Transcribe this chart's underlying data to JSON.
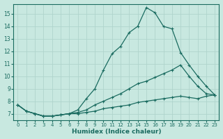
{
  "xlabel": "Humidex (Indice chaleur)",
  "bg_color": "#c8e8e0",
  "grid_color": "#b0d4cc",
  "line_color": "#1a6b60",
  "xlim": [
    -0.5,
    23.5
  ],
  "ylim": [
    6.5,
    15.8
  ],
  "xticks": [
    0,
    1,
    2,
    3,
    4,
    5,
    6,
    7,
    8,
    9,
    10,
    11,
    12,
    13,
    14,
    15,
    16,
    17,
    18,
    19,
    20,
    21,
    22,
    23
  ],
  "yticks": [
    7,
    8,
    9,
    10,
    11,
    12,
    13,
    14,
    15
  ],
  "line1_x": [
    0,
    1,
    2,
    3,
    4,
    5,
    6,
    7,
    8,
    9,
    10,
    11,
    12,
    13,
    14,
    15,
    16,
    17,
    18,
    19,
    20,
    21,
    22,
    23
  ],
  "line1_y": [
    7.7,
    7.2,
    7.0,
    6.8,
    6.8,
    6.9,
    7.0,
    7.0,
    7.1,
    7.2,
    7.4,
    7.5,
    7.6,
    7.7,
    7.9,
    8.0,
    8.1,
    8.2,
    8.3,
    8.4,
    8.3,
    8.2,
    8.4,
    8.5
  ],
  "line2_x": [
    0,
    1,
    2,
    3,
    4,
    5,
    6,
    7,
    8,
    9,
    10,
    11,
    12,
    13,
    14,
    15,
    16,
    17,
    18,
    19,
    20,
    21,
    22,
    23
  ],
  "line2_y": [
    7.7,
    7.2,
    7.0,
    6.8,
    6.8,
    6.9,
    7.0,
    7.1,
    7.3,
    7.7,
    8.0,
    8.3,
    8.6,
    9.0,
    9.4,
    9.6,
    9.9,
    10.2,
    10.5,
    10.9,
    10.0,
    9.2,
    8.6,
    8.5
  ],
  "line3_x": [
    0,
    1,
    2,
    3,
    4,
    5,
    6,
    7,
    8,
    9,
    10,
    11,
    12,
    13,
    14,
    15,
    16,
    17,
    18,
    19,
    20,
    21,
    22,
    23
  ],
  "line3_y": [
    7.7,
    7.2,
    7.0,
    6.8,
    6.8,
    6.9,
    7.0,
    7.3,
    8.2,
    9.0,
    10.5,
    11.8,
    12.4,
    13.5,
    14.0,
    15.5,
    15.1,
    14.0,
    13.8,
    11.9,
    10.9,
    10.0,
    9.2,
    8.5
  ]
}
